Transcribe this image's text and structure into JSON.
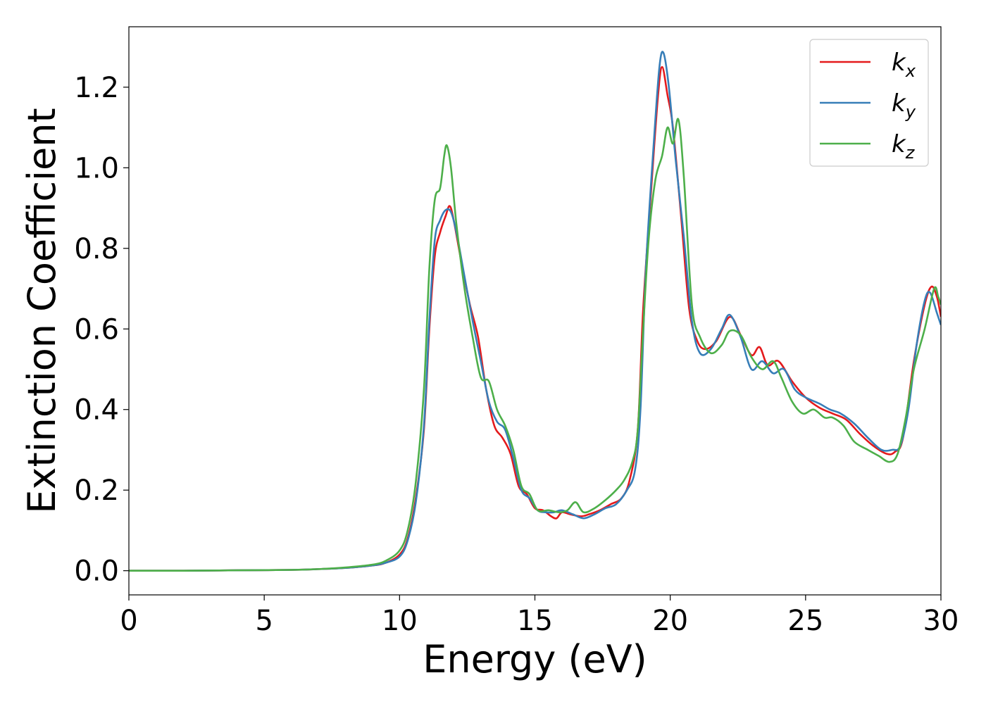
{
  "chart_data": {
    "type": "line",
    "xlabel": "Energy (eV)",
    "ylabel": "Extinction Coefficient",
    "xlim": [
      0,
      30
    ],
    "ylim": [
      -0.06,
      1.35
    ],
    "xticks": [
      0,
      5,
      10,
      15,
      20,
      25,
      30
    ],
    "xtick_labels": [
      "0",
      "5",
      "10",
      "15",
      "20",
      "25",
      "30"
    ],
    "yticks": [
      0.0,
      0.2,
      0.4,
      0.6,
      0.8,
      1.0,
      1.2
    ],
    "ytick_labels": [
      "0.0",
      "0.2",
      "0.4",
      "0.6",
      "0.8",
      "1.0",
      "1.2"
    ],
    "grid": false,
    "legend_position": "top-right",
    "series": [
      {
        "name": "k",
        "subscript": "x",
        "color": "#e41a1c",
        "points": [
          [
            0,
            0.0
          ],
          [
            2,
            0.0
          ],
          [
            4,
            0.001
          ],
          [
            6,
            0.002
          ],
          [
            7,
            0.004
          ],
          [
            8,
            0.007
          ],
          [
            9,
            0.013
          ],
          [
            9.5,
            0.02
          ],
          [
            10,
            0.04
          ],
          [
            10.3,
            0.08
          ],
          [
            10.6,
            0.18
          ],
          [
            10.9,
            0.35
          ],
          [
            11.1,
            0.6
          ],
          [
            11.3,
            0.78
          ],
          [
            11.5,
            0.84
          ],
          [
            11.7,
            0.88
          ],
          [
            11.85,
            0.905
          ],
          [
            12.0,
            0.87
          ],
          [
            12.3,
            0.76
          ],
          [
            12.6,
            0.66
          ],
          [
            12.9,
            0.58
          ],
          [
            13.2,
            0.45
          ],
          [
            13.5,
            0.36
          ],
          [
            13.8,
            0.33
          ],
          [
            14.1,
            0.29
          ],
          [
            14.4,
            0.21
          ],
          [
            14.7,
            0.19
          ],
          [
            15.0,
            0.155
          ],
          [
            15.3,
            0.15
          ],
          [
            15.6,
            0.135
          ],
          [
            15.8,
            0.13
          ],
          [
            16.0,
            0.145
          ],
          [
            16.3,
            0.14
          ],
          [
            16.7,
            0.135
          ],
          [
            17.0,
            0.14
          ],
          [
            17.4,
            0.15
          ],
          [
            17.8,
            0.165
          ],
          [
            18.2,
            0.18
          ],
          [
            18.5,
            0.225
          ],
          [
            18.8,
            0.35
          ],
          [
            19.0,
            0.65
          ],
          [
            19.3,
            0.95
          ],
          [
            19.55,
            1.18
          ],
          [
            19.7,
            1.25
          ],
          [
            19.9,
            1.18
          ],
          [
            20.1,
            1.1
          ],
          [
            20.4,
            0.88
          ],
          [
            20.7,
            0.65
          ],
          [
            21.0,
            0.57
          ],
          [
            21.3,
            0.55
          ],
          [
            21.7,
            0.57
          ],
          [
            22.2,
            0.63
          ],
          [
            22.6,
            0.585
          ],
          [
            23.0,
            0.535
          ],
          [
            23.3,
            0.555
          ],
          [
            23.6,
            0.51
          ],
          [
            24.0,
            0.52
          ],
          [
            24.5,
            0.47
          ],
          [
            25.0,
            0.43
          ],
          [
            25.5,
            0.405
          ],
          [
            26.0,
            0.39
          ],
          [
            26.5,
            0.375
          ],
          [
            27.0,
            0.34
          ],
          [
            27.5,
            0.31
          ],
          [
            28.0,
            0.29
          ],
          [
            28.3,
            0.295
          ],
          [
            28.6,
            0.33
          ],
          [
            29.0,
            0.52
          ],
          [
            29.4,
            0.66
          ],
          [
            29.65,
            0.705
          ],
          [
            29.85,
            0.68
          ],
          [
            30.0,
            0.63
          ]
        ]
      },
      {
        "name": "k",
        "subscript": "y",
        "color": "#377eb8",
        "points": [
          [
            0,
            0.0
          ],
          [
            2,
            0.0
          ],
          [
            4,
            0.001
          ],
          [
            6,
            0.002
          ],
          [
            7,
            0.004
          ],
          [
            8,
            0.007
          ],
          [
            9,
            0.013
          ],
          [
            9.5,
            0.02
          ],
          [
            10,
            0.035
          ],
          [
            10.3,
            0.075
          ],
          [
            10.6,
            0.17
          ],
          [
            10.9,
            0.36
          ],
          [
            11.1,
            0.62
          ],
          [
            11.3,
            0.82
          ],
          [
            11.5,
            0.87
          ],
          [
            11.7,
            0.895
          ],
          [
            11.9,
            0.89
          ],
          [
            12.1,
            0.84
          ],
          [
            12.4,
            0.73
          ],
          [
            12.7,
            0.62
          ],
          [
            13.0,
            0.52
          ],
          [
            13.3,
            0.42
          ],
          [
            13.6,
            0.37
          ],
          [
            13.9,
            0.35
          ],
          [
            14.2,
            0.28
          ],
          [
            14.5,
            0.2
          ],
          [
            14.8,
            0.18
          ],
          [
            15.1,
            0.15
          ],
          [
            15.4,
            0.145
          ],
          [
            15.7,
            0.145
          ],
          [
            16.0,
            0.15
          ],
          [
            16.4,
            0.14
          ],
          [
            16.8,
            0.13
          ],
          [
            17.2,
            0.14
          ],
          [
            17.6,
            0.155
          ],
          [
            18.0,
            0.165
          ],
          [
            18.4,
            0.2
          ],
          [
            18.7,
            0.25
          ],
          [
            18.9,
            0.4
          ],
          [
            19.1,
            0.75
          ],
          [
            19.4,
            1.07
          ],
          [
            19.6,
            1.25
          ],
          [
            19.75,
            1.285
          ],
          [
            19.95,
            1.2
          ],
          [
            20.2,
            1.02
          ],
          [
            20.5,
            0.83
          ],
          [
            20.8,
            0.62
          ],
          [
            21.1,
            0.54
          ],
          [
            21.5,
            0.55
          ],
          [
            21.9,
            0.6
          ],
          [
            22.2,
            0.635
          ],
          [
            22.6,
            0.58
          ],
          [
            23.0,
            0.5
          ],
          [
            23.4,
            0.52
          ],
          [
            23.8,
            0.49
          ],
          [
            24.2,
            0.5
          ],
          [
            24.6,
            0.45
          ],
          [
            25.0,
            0.43
          ],
          [
            25.5,
            0.415
          ],
          [
            25.9,
            0.4
          ],
          [
            26.3,
            0.39
          ],
          [
            26.8,
            0.365
          ],
          [
            27.3,
            0.33
          ],
          [
            27.8,
            0.3
          ],
          [
            28.2,
            0.3
          ],
          [
            28.5,
            0.31
          ],
          [
            28.8,
            0.4
          ],
          [
            29.1,
            0.56
          ],
          [
            29.4,
            0.67
          ],
          [
            29.6,
            0.69
          ],
          [
            29.85,
            0.64
          ],
          [
            30.0,
            0.61
          ]
        ]
      },
      {
        "name": "k",
        "subscript": "z",
        "color": "#4daf4a",
        "points": [
          [
            0,
            0.0
          ],
          [
            2,
            0.0
          ],
          [
            4,
            0.001
          ],
          [
            6,
            0.002
          ],
          [
            7,
            0.004
          ],
          [
            8,
            0.008
          ],
          [
            9,
            0.015
          ],
          [
            9.5,
            0.025
          ],
          [
            10,
            0.05
          ],
          [
            10.3,
            0.1
          ],
          [
            10.6,
            0.22
          ],
          [
            10.9,
            0.45
          ],
          [
            11.1,
            0.75
          ],
          [
            11.3,
            0.92
          ],
          [
            11.5,
            0.95
          ],
          [
            11.65,
            1.03
          ],
          [
            11.75,
            1.055
          ],
          [
            11.9,
            1.0
          ],
          [
            12.1,
            0.86
          ],
          [
            12.4,
            0.7
          ],
          [
            12.7,
            0.58
          ],
          [
            13.0,
            0.48
          ],
          [
            13.3,
            0.47
          ],
          [
            13.6,
            0.4
          ],
          [
            13.9,
            0.36
          ],
          [
            14.2,
            0.3
          ],
          [
            14.5,
            0.21
          ],
          [
            14.8,
            0.19
          ],
          [
            15.1,
            0.15
          ],
          [
            15.5,
            0.15
          ],
          [
            15.9,
            0.145
          ],
          [
            16.2,
            0.15
          ],
          [
            16.5,
            0.17
          ],
          [
            16.8,
            0.145
          ],
          [
            17.2,
            0.155
          ],
          [
            17.6,
            0.175
          ],
          [
            18.0,
            0.2
          ],
          [
            18.3,
            0.225
          ],
          [
            18.6,
            0.27
          ],
          [
            18.8,
            0.35
          ],
          [
            19.0,
            0.6
          ],
          [
            19.2,
            0.82
          ],
          [
            19.45,
            0.97
          ],
          [
            19.7,
            1.03
          ],
          [
            19.9,
            1.1
          ],
          [
            20.1,
            1.06
          ],
          [
            20.3,
            1.12
          ],
          [
            20.5,
            0.98
          ],
          [
            20.8,
            0.66
          ],
          [
            21.1,
            0.58
          ],
          [
            21.5,
            0.54
          ],
          [
            21.9,
            0.56
          ],
          [
            22.2,
            0.595
          ],
          [
            22.6,
            0.585
          ],
          [
            23.0,
            0.53
          ],
          [
            23.4,
            0.5
          ],
          [
            23.8,
            0.52
          ],
          [
            24.1,
            0.48
          ],
          [
            24.5,
            0.42
          ],
          [
            24.9,
            0.39
          ],
          [
            25.3,
            0.4
          ],
          [
            25.7,
            0.38
          ],
          [
            26.0,
            0.38
          ],
          [
            26.4,
            0.36
          ],
          [
            26.8,
            0.32
          ],
          [
            27.3,
            0.3
          ],
          [
            27.7,
            0.285
          ],
          [
            28.1,
            0.27
          ],
          [
            28.4,
            0.29
          ],
          [
            28.7,
            0.38
          ],
          [
            29.0,
            0.5
          ],
          [
            29.4,
            0.6
          ],
          [
            29.75,
            0.7
          ],
          [
            29.9,
            0.68
          ],
          [
            30.0,
            0.66
          ]
        ]
      }
    ]
  }
}
